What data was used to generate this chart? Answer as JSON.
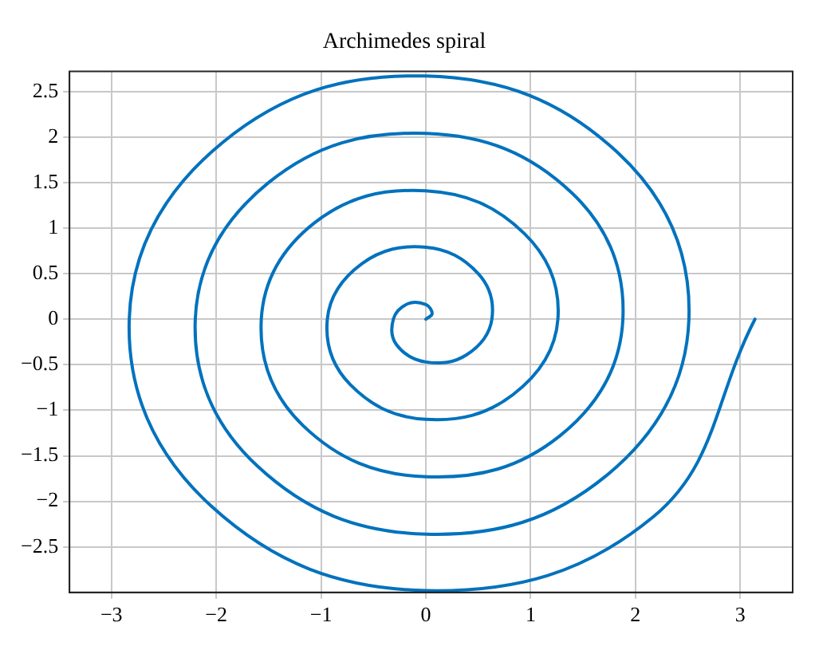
{
  "chart_data": {
    "type": "line",
    "title": "Archimedes spiral",
    "series": [
      {
        "color": "#0072bd",
        "x": [
          0,
          0.06,
          0,
          -0.17,
          -0.31,
          -0.28,
          0,
          0.39,
          0.63,
          0.5,
          0,
          -0.61,
          -0.94,
          -0.72,
          0,
          0.83,
          1.26,
          0.94,
          0,
          -1.06,
          -1.57,
          -1.17,
          0,
          1.28,
          1.88,
          1.39,
          0,
          -1.5,
          -2.2,
          -1.61,
          0,
          1.72,
          2.51,
          1.83,
          0,
          -1.94,
          -2.83,
          -2.05,
          0,
          2.17,
          3.14
        ],
        "values": [
          0,
          0.06,
          0.16,
          0.17,
          0,
          -0.28,
          -0.47,
          -0.39,
          0,
          0.5,
          0.79,
          0.61,
          0,
          -0.72,
          -1.1,
          -0.83,
          0,
          0.94,
          1.41,
          1.06,
          0,
          -1.17,
          -1.73,
          -1.28,
          0,
          1.39,
          2.04,
          1.5,
          0,
          -1.61,
          -2.36,
          -1.72,
          0,
          1.83,
          2.67,
          1.94,
          0,
          -2.05,
          -2.98,
          -2.17,
          0
        ]
      }
    ],
    "xlim": [
      -3.4,
      3.5
    ],
    "xticks": [
      {
        "value": -3,
        "label": "−3"
      },
      {
        "value": -2,
        "label": "−2"
      },
      {
        "value": -1,
        "label": "−1"
      },
      0,
      1,
      2,
      3
    ],
    "ylim": [
      -3,
      2.72
    ],
    "yticks": [
      {
        "value": -2.5,
        "label": "−2.5"
      },
      {
        "value": -2,
        "label": "−2"
      },
      {
        "value": -1.5,
        "label": "−1.5"
      },
      {
        "value": -1,
        "label": "−1"
      },
      {
        "value": -0.5,
        "label": "−0.5"
      },
      0,
      0.5,
      1,
      1.5,
      2,
      2.5
    ],
    "grid": true
  }
}
